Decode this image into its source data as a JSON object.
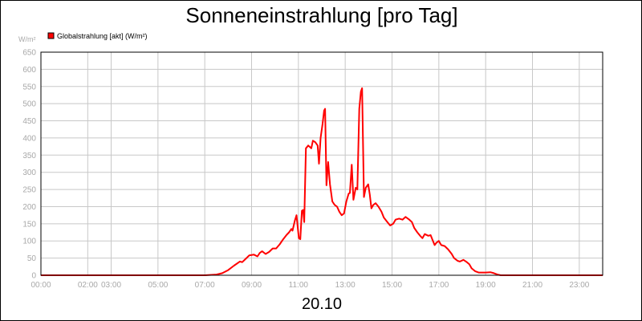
{
  "chart_data": {
    "type": "line",
    "title": "Sonneneinstrahlung [pro Tag]",
    "ylabel": "W/m²",
    "xlabel": "20.10",
    "ylim": [
      0,
      650
    ],
    "yticks": [
      0,
      50,
      100,
      150,
      200,
      250,
      300,
      350,
      400,
      450,
      500,
      550,
      600,
      650
    ],
    "xlim": [
      0,
      24
    ],
    "xtick_labels": [
      {
        "x": 0,
        "label": "00:00"
      },
      {
        "x": 2,
        "label": "02:00"
      },
      {
        "x": 3,
        "label": "03:00"
      },
      {
        "x": 5,
        "label": "05:00"
      },
      {
        "x": 7,
        "label": "07:00"
      },
      {
        "x": 9,
        "label": "09:00"
      },
      {
        "x": 11,
        "label": "11:00"
      },
      {
        "x": 13,
        "label": "13:00"
      },
      {
        "x": 15,
        "label": "15:00"
      },
      {
        "x": 17,
        "label": "17:00"
      },
      {
        "x": 19,
        "label": "19:00"
      },
      {
        "x": 21,
        "label": "21:00"
      },
      {
        "x": 23,
        "label": "23:00"
      }
    ],
    "grid": true,
    "legend_position": "top-left",
    "series": [
      {
        "name": "Globalstrahlung [akt] (W/m²)",
        "color": "#ff0000",
        "points": [
          [
            0,
            0
          ],
          [
            7.0,
            0
          ],
          [
            7.5,
            2
          ],
          [
            7.75,
            6
          ],
          [
            8.0,
            15
          ],
          [
            8.25,
            28
          ],
          [
            8.5,
            40
          ],
          [
            8.6,
            38
          ],
          [
            8.75,
            48
          ],
          [
            8.9,
            58
          ],
          [
            9.1,
            60
          ],
          [
            9.25,
            55
          ],
          [
            9.35,
            65
          ],
          [
            9.45,
            70
          ],
          [
            9.6,
            62
          ],
          [
            9.75,
            68
          ],
          [
            9.9,
            78
          ],
          [
            10.05,
            78
          ],
          [
            10.2,
            90
          ],
          [
            10.35,
            105
          ],
          [
            10.5,
            118
          ],
          [
            10.6,
            125
          ],
          [
            10.7,
            135
          ],
          [
            10.75,
            130
          ],
          [
            10.85,
            160
          ],
          [
            10.92,
            175
          ],
          [
            10.97,
            140
          ],
          [
            11.02,
            108
          ],
          [
            11.08,
            105
          ],
          [
            11.15,
            188
          ],
          [
            11.2,
            190
          ],
          [
            11.25,
            155
          ],
          [
            11.32,
            370
          ],
          [
            11.42,
            378
          ],
          [
            11.55,
            370
          ],
          [
            11.62,
            392
          ],
          [
            11.72,
            388
          ],
          [
            11.82,
            378
          ],
          [
            11.88,
            325
          ],
          [
            11.95,
            400
          ],
          [
            12.03,
            440
          ],
          [
            12.1,
            480
          ],
          [
            12.14,
            485
          ],
          [
            12.2,
            262
          ],
          [
            12.27,
            330
          ],
          [
            12.35,
            265
          ],
          [
            12.45,
            215
          ],
          [
            12.55,
            205
          ],
          [
            12.65,
            200
          ],
          [
            12.75,
            185
          ],
          [
            12.85,
            175
          ],
          [
            12.95,
            180
          ],
          [
            13.05,
            215
          ],
          [
            13.15,
            238
          ],
          [
            13.2,
            240
          ],
          [
            13.28,
            322
          ],
          [
            13.35,
            220
          ],
          [
            13.45,
            255
          ],
          [
            13.52,
            250
          ],
          [
            13.6,
            485
          ],
          [
            13.67,
            535
          ],
          [
            13.72,
            545
          ],
          [
            13.8,
            228
          ],
          [
            13.88,
            255
          ],
          [
            13.98,
            265
          ],
          [
            14.05,
            235
          ],
          [
            14.12,
            195
          ],
          [
            14.2,
            205
          ],
          [
            14.3,
            210
          ],
          [
            14.42,
            200
          ],
          [
            14.55,
            185
          ],
          [
            14.65,
            168
          ],
          [
            14.8,
            155
          ],
          [
            14.92,
            145
          ],
          [
            15.05,
            150
          ],
          [
            15.15,
            162
          ],
          [
            15.3,
            165
          ],
          [
            15.45,
            162
          ],
          [
            15.58,
            170
          ],
          [
            15.72,
            163
          ],
          [
            15.85,
            155
          ],
          [
            15.95,
            138
          ],
          [
            16.08,
            125
          ],
          [
            16.2,
            115
          ],
          [
            16.3,
            108
          ],
          [
            16.4,
            120
          ],
          [
            16.55,
            115
          ],
          [
            16.65,
            117
          ],
          [
            16.75,
            100
          ],
          [
            16.82,
            88
          ],
          [
            16.9,
            95
          ],
          [
            17.0,
            100
          ],
          [
            17.1,
            88
          ],
          [
            17.25,
            85
          ],
          [
            17.4,
            75
          ],
          [
            17.55,
            62
          ],
          [
            17.65,
            50
          ],
          [
            17.8,
            42
          ],
          [
            17.9,
            40
          ],
          [
            18.05,
            45
          ],
          [
            18.2,
            38
          ],
          [
            18.3,
            32
          ],
          [
            18.4,
            20
          ],
          [
            18.55,
            12
          ],
          [
            18.7,
            8
          ],
          [
            19.0,
            8
          ],
          [
            19.2,
            9
          ],
          [
            19.35,
            6
          ],
          [
            19.5,
            2
          ],
          [
            19.65,
            0
          ],
          [
            24,
            0
          ]
        ]
      }
    ]
  }
}
